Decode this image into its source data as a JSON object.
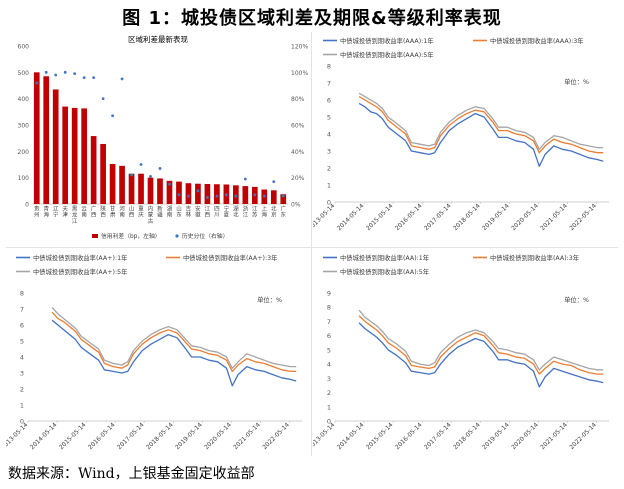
{
  "page": {
    "title": "图 1：城投债区域利差及期限&等级利率表现",
    "source": "数据来源：Wind，上银基金固定收益部"
  },
  "chart_data": [
    {
      "id": "spread",
      "type": "bar",
      "title": "区域利差最新表现",
      "categories": [
        "贵州",
        "青海",
        "辽宁",
        "天津",
        "黑龙江",
        "云南",
        "广西",
        "陕西",
        "甘肃",
        "河南",
        "山西",
        "重庆",
        "内蒙古",
        "新疆",
        "湖南",
        "山东",
        "吉林",
        "安徽",
        "江西",
        "四川",
        "宁夏",
        "湖北",
        "浙江",
        "江苏",
        "上海",
        "北京",
        "广东"
      ],
      "series": [
        {
          "name": "信用利差（bp，左轴）",
          "axis": "left",
          "kind": "bar",
          "color": "#C00000",
          "values": [
            500,
            485,
            435,
            370,
            365,
            363,
            258,
            228,
            152,
            145,
            115,
            115,
            100,
            97,
            88,
            85,
            79,
            77,
            76,
            75,
            74,
            71,
            68,
            65,
            55,
            52,
            37
          ]
        },
        {
          "name": "历史分位（右轴）",
          "axis": "right",
          "kind": "scatter",
          "color": "#4472C4",
          "values": [
            0.92,
            1.0,
            0.98,
            1.0,
            0.99,
            0.96,
            0.96,
            0.8,
            0.67,
            0.95,
            0.22,
            0.3,
            0.21,
            0.27,
            0.15,
            0.07,
            0.06,
            0.1,
            0.05,
            0.06,
            0.07,
            0.06,
            0.19,
            0.07,
            0.06,
            0.17,
            0.06
          ]
        }
      ],
      "yleft": {
        "min": 0,
        "max": 600,
        "ticks": [
          "0",
          "100",
          "200",
          "300",
          "400",
          "500",
          "600"
        ]
      },
      "yright": {
        "min": 0,
        "max": 1.2,
        "ticks": [
          "0%",
          "20%",
          "40%",
          "60%",
          "80%",
          "100%",
          "120%"
        ]
      }
    },
    {
      "id": "aaa",
      "type": "line",
      "legend": [
        "中债城投债到期收益率(AAA):1年",
        "中债城投债到期收益率(AAA):3年",
        "中债城投债到期收益率(AAA):5年"
      ],
      "unit": "单位：%",
      "ylim": [
        0,
        8
      ],
      "yticks": [
        "0",
        "1",
        "2",
        "3",
        "4",
        "5",
        "6",
        "7",
        "8"
      ],
      "xticks": [
        "2013-05-14",
        "2014-05-14",
        "2015-05-14",
        "2016-05-14",
        "2017-05-14",
        "2018-05-14",
        "2019-05-14",
        "2020-05-14",
        "2021-05-14",
        "2022-05-14"
      ],
      "x": [
        2014.2,
        2014.4,
        2014.6,
        2014.8,
        2015.0,
        2015.2,
        2015.5,
        2015.8,
        2016.0,
        2016.3,
        2016.6,
        2016.8,
        2017.0,
        2017.3,
        2017.6,
        2017.9,
        2018.2,
        2018.5,
        2018.8,
        2019.0,
        2019.3,
        2019.6,
        2019.9,
        2020.2,
        2020.4,
        2020.6,
        2020.9,
        2021.2,
        2021.5,
        2021.8,
        2022.1,
        2022.4,
        2022.6
      ],
      "series": [
        {
          "values": [
            5.8,
            5.6,
            5.3,
            5.2,
            4.9,
            4.4,
            4.0,
            3.6,
            3.0,
            2.9,
            2.8,
            2.9,
            3.5,
            4.2,
            4.6,
            4.9,
            5.2,
            5.0,
            4.3,
            3.8,
            3.8,
            3.6,
            3.5,
            3.1,
            2.1,
            2.8,
            3.3,
            3.1,
            3.0,
            2.8,
            2.6,
            2.5,
            2.4
          ]
        },
        {
          "values": [
            6.2,
            6.0,
            5.8,
            5.6,
            5.3,
            4.8,
            4.4,
            4.0,
            3.3,
            3.2,
            3.1,
            3.2,
            3.9,
            4.5,
            4.9,
            5.2,
            5.4,
            5.3,
            4.7,
            4.2,
            4.2,
            4.0,
            3.9,
            3.6,
            2.9,
            3.3,
            3.7,
            3.5,
            3.4,
            3.2,
            3.0,
            2.9,
            2.9
          ]
        },
        {
          "values": [
            6.4,
            6.2,
            6.0,
            5.8,
            5.5,
            5.0,
            4.6,
            4.2,
            3.5,
            3.4,
            3.3,
            3.4,
            4.1,
            4.7,
            5.1,
            5.4,
            5.6,
            5.5,
            4.9,
            4.4,
            4.4,
            4.2,
            4.1,
            3.8,
            3.1,
            3.5,
            3.9,
            3.8,
            3.6,
            3.4,
            3.3,
            3.2,
            3.2
          ]
        }
      ]
    },
    {
      "id": "aaplus",
      "type": "line",
      "legend": [
        "中债城投债到期收益率(AA+):1年",
        "中债城投债到期收益率(AA+):3年",
        "中债城投债到期收益率(AA+):5年"
      ],
      "unit": "单位：%",
      "ylim": [
        0,
        8
      ],
      "yticks": [
        "0",
        "1",
        "2",
        "3",
        "4",
        "5",
        "6",
        "7",
        "8"
      ],
      "xticks": [
        "2013-05-14",
        "2014-05-14",
        "2015-05-14",
        "2016-05-14",
        "2017-05-14",
        "2018-05-14",
        "2019-05-14",
        "2020-05-14",
        "2021-05-14",
        "2022-05-14"
      ],
      "x": [
        2014.2,
        2014.4,
        2014.6,
        2014.8,
        2015.0,
        2015.2,
        2015.5,
        2015.8,
        2016.0,
        2016.3,
        2016.6,
        2016.8,
        2017.0,
        2017.3,
        2017.6,
        2017.9,
        2018.2,
        2018.5,
        2018.8,
        2019.0,
        2019.3,
        2019.6,
        2019.9,
        2020.2,
        2020.4,
        2020.6,
        2020.9,
        2021.2,
        2021.5,
        2021.8,
        2022.1,
        2022.4,
        2022.6
      ],
      "series": [
        {
          "values": [
            6.3,
            6.0,
            5.7,
            5.4,
            5.1,
            4.6,
            4.2,
            3.8,
            3.2,
            3.1,
            3.0,
            3.1,
            3.7,
            4.4,
            4.8,
            5.1,
            5.4,
            5.2,
            4.5,
            4.0,
            4.0,
            3.8,
            3.7,
            3.3,
            2.2,
            2.9,
            3.4,
            3.2,
            3.1,
            2.9,
            2.7,
            2.6,
            2.5
          ]
        },
        {
          "values": [
            6.8,
            6.4,
            6.2,
            5.9,
            5.6,
            5.1,
            4.7,
            4.3,
            3.6,
            3.4,
            3.3,
            3.5,
            4.2,
            4.8,
            5.2,
            5.5,
            5.7,
            5.5,
            4.9,
            4.5,
            4.4,
            4.2,
            4.1,
            3.8,
            3.1,
            3.5,
            3.9,
            3.7,
            3.6,
            3.4,
            3.2,
            3.1,
            3.1
          ]
        },
        {
          "values": [
            7.1,
            6.7,
            6.4,
            6.1,
            5.8,
            5.3,
            4.9,
            4.5,
            3.8,
            3.6,
            3.5,
            3.7,
            4.4,
            5.0,
            5.4,
            5.7,
            5.9,
            5.7,
            5.1,
            4.7,
            4.6,
            4.4,
            4.3,
            4.0,
            3.3,
            3.7,
            4.2,
            4.0,
            3.8,
            3.6,
            3.5,
            3.4,
            3.4
          ]
        }
      ]
    },
    {
      "id": "aa",
      "type": "line",
      "legend": [
        "中债城投债到期收益率(AA):1年",
        "中债城投债到期收益率(AA):3年",
        "中债城投债到期收益率(AA):5年"
      ],
      "unit": "单位：%",
      "ylim": [
        0,
        9
      ],
      "yticks": [
        "0",
        "1",
        "2",
        "3",
        "4",
        "5",
        "6",
        "7",
        "8",
        "9"
      ],
      "xticks": [
        "2013-05-14",
        "2014-05-14",
        "2015-05-14",
        "2016-05-14",
        "2017-05-14",
        "2018-05-14",
        "2019-05-14",
        "2020-05-14",
        "2021-05-14",
        "2022-05-14"
      ],
      "x": [
        2014.2,
        2014.4,
        2014.6,
        2014.8,
        2015.0,
        2015.2,
        2015.5,
        2015.8,
        2016.0,
        2016.3,
        2016.6,
        2016.8,
        2017.0,
        2017.3,
        2017.6,
        2017.9,
        2018.2,
        2018.5,
        2018.8,
        2019.0,
        2019.3,
        2019.6,
        2019.9,
        2020.2,
        2020.4,
        2020.6,
        2020.9,
        2021.2,
        2021.5,
        2021.8,
        2022.1,
        2022.4,
        2022.6
      ],
      "series": [
        {
          "values": [
            6.9,
            6.5,
            6.2,
            5.9,
            5.5,
            5.0,
            4.6,
            4.1,
            3.5,
            3.4,
            3.3,
            3.4,
            4.0,
            4.7,
            5.2,
            5.5,
            5.8,
            5.6,
            4.9,
            4.3,
            4.3,
            4.1,
            4.0,
            3.5,
            2.4,
            3.1,
            3.7,
            3.5,
            3.3,
            3.1,
            2.9,
            2.8,
            2.7
          ]
        },
        {
          "values": [
            7.4,
            7.0,
            6.7,
            6.4,
            6.0,
            5.5,
            5.1,
            4.6,
            3.9,
            3.8,
            3.7,
            3.8,
            4.5,
            5.1,
            5.6,
            5.9,
            6.2,
            6.0,
            5.3,
            4.8,
            4.7,
            4.5,
            4.4,
            4.0,
            3.3,
            3.7,
            4.2,
            4.0,
            3.9,
            3.6,
            3.4,
            3.3,
            3.3
          ]
        },
        {
          "values": [
            7.8,
            7.3,
            7.0,
            6.7,
            6.3,
            5.8,
            5.4,
            4.9,
            4.2,
            4.0,
            3.9,
            4.1,
            4.8,
            5.4,
            5.9,
            6.2,
            6.4,
            6.2,
            5.6,
            5.1,
            5.0,
            4.8,
            4.7,
            4.3,
            3.6,
            4.0,
            4.5,
            4.3,
            4.1,
            3.9,
            3.7,
            3.6,
            3.6
          ]
        }
      ]
    }
  ],
  "colors": {
    "series1": "#4472C4",
    "series2": "#ED7D31",
    "series3": "#A5A5A5",
    "bar": "#C00000",
    "scatter": "#4472C4"
  }
}
